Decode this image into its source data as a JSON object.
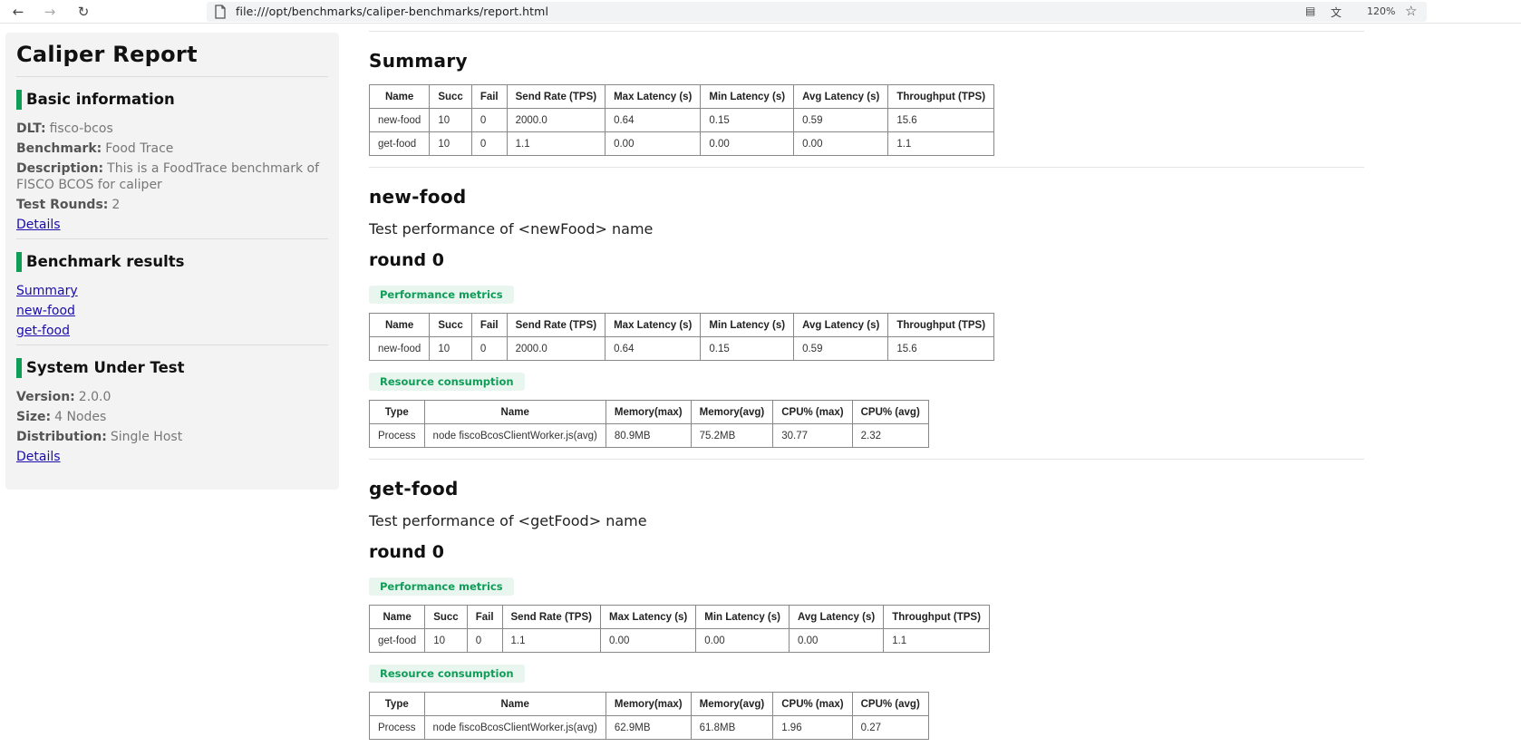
{
  "browser": {
    "url": "file:///opt/benchmarks/caliper-benchmarks/report.html",
    "zoom": "120%"
  },
  "sidebar": {
    "title": "Caliper Report",
    "basic": {
      "heading": "Basic information",
      "dlt_label": "DLT:",
      "dlt_value": "fisco-bcos",
      "benchmark_label": "Benchmark:",
      "benchmark_value": "Food Trace",
      "description_label": "Description:",
      "description_value": "This is a FoodTrace benchmark of FISCO BCOS for caliper",
      "rounds_label": "Test Rounds:",
      "rounds_value": "2",
      "details_link": "Details"
    },
    "results": {
      "heading": "Benchmark results",
      "links": [
        "Summary",
        "new-food",
        "get-food"
      ]
    },
    "sut": {
      "heading": "System Under Test",
      "version_label": "Version:",
      "version_value": "2.0.0",
      "size_label": "Size:",
      "size_value": "4 Nodes",
      "distribution_label": "Distribution:",
      "distribution_value": "Single Host",
      "details_link": "Details"
    }
  },
  "perf_headers": [
    "Name",
    "Succ",
    "Fail",
    "Send Rate (TPS)",
    "Max Latency (s)",
    "Min Latency (s)",
    "Avg Latency (s)",
    "Throughput (TPS)"
  ],
  "res_headers": [
    "Type",
    "Name",
    "Memory(max)",
    "Memory(avg)",
    "CPU% (max)",
    "CPU% (avg)"
  ],
  "summary": {
    "title": "Summary",
    "rows": [
      [
        "new-food",
        "10",
        "0",
        "2000.0",
        "0.64",
        "0.15",
        "0.59",
        "15.6"
      ],
      [
        "get-food",
        "10",
        "0",
        "1.1",
        "0.00",
        "0.00",
        "0.00",
        "1.1"
      ]
    ]
  },
  "sections": [
    {
      "title": "new-food",
      "description": "Test performance of <newFood> name",
      "round": "round 0",
      "perf_tag": "Performance metrics",
      "perf_rows": [
        [
          "new-food",
          "10",
          "0",
          "2000.0",
          "0.64",
          "0.15",
          "0.59",
          "15.6"
        ]
      ],
      "res_tag": "Resource consumption",
      "res_rows": [
        [
          "Process",
          "node fiscoBcosClientWorker.js(avg)",
          "80.9MB",
          "75.2MB",
          "30.77",
          "2.32"
        ]
      ]
    },
    {
      "title": "get-food",
      "description": "Test performance of <getFood> name",
      "round": "round 0",
      "perf_tag": "Performance metrics",
      "perf_rows": [
        [
          "get-food",
          "10",
          "0",
          "1.1",
          "0.00",
          "0.00",
          "0.00",
          "1.1"
        ]
      ],
      "res_tag": "Resource consumption",
      "res_rows": [
        [
          "Process",
          "node fiscoBcosClientWorker.js(avg)",
          "62.9MB",
          "61.8MB",
          "1.96",
          "0.27"
        ]
      ]
    }
  ]
}
